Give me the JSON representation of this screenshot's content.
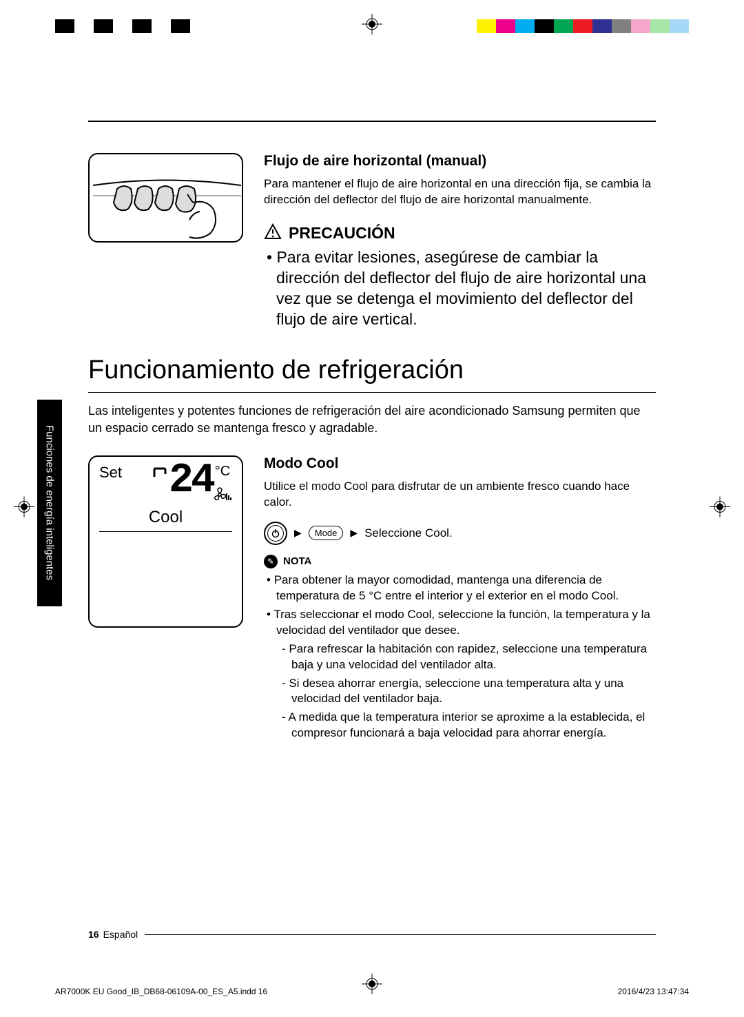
{
  "regbar": {
    "left_colors": [
      "#000000",
      "#ffffff",
      "#000000",
      "#ffffff",
      "#000000",
      "#ffffff",
      "#000000"
    ],
    "right_colors": [
      "#00aeef",
      "#ec008c",
      "#fff200",
      "#000000",
      "#00a651",
      "#ed1c24",
      "#2e3192",
      "#ffffff"
    ],
    "right_colors2": [
      "#fff200",
      "#ec008c",
      "#00aeef",
      "#7f7f7f",
      "#9e9e9e",
      "#bdbdbd",
      "#dcdcdc"
    ]
  },
  "section1": {
    "heading": "Flujo de aire horizontal (manual)",
    "body": "Para mantener el flujo de aire horizontal en una dirección fija, se cambia la dirección del deflector del flujo de aire horizontal manualmente.",
    "caution_label": "PRECAUCIÓN",
    "caution_body": "Para evitar lesiones, asegúrese de cambiar la dirección del deflector del flujo de aire horizontal una vez que se detenga el movimiento del deflector del flujo de aire vertical."
  },
  "main": {
    "title": "Funcionamiento de refrigeración",
    "intro": "Las inteligentes y potentes funciones de refrigeración del aire acondicionado Samsung permiten que un espacio cerrado se mantenga fresco y agradable."
  },
  "side_tab": "Funciones de energía inteligentes",
  "remote": {
    "set_label": "Set",
    "temp_value": "24",
    "temp_unit": "°C",
    "mode": "Cool"
  },
  "section2": {
    "heading": "Modo Cool",
    "body": "Utilice el modo Cool para disfrutar de un ambiente fresco cuando hace calor.",
    "step_mode": "Mode",
    "step_select": "Seleccione Cool.",
    "nota_label": "NOTA",
    "notes": [
      "Para obtener la mayor comodidad, mantenga una diferencia de temperatura de 5 °C entre el interior y el exterior en el modo Cool.",
      "Tras seleccionar el modo Cool, seleccione la función, la temperatura y la velocidad del ventilador que desee."
    ],
    "subnotes": [
      "Para refrescar la habitación con rapidez, seleccione una temperatura baja y una velocidad del ventilador alta.",
      "Si desea ahorrar energía, seleccione una temperatura alta y una velocidad del ventilador baja.",
      "A medida que la temperatura interior se aproxime a la establecida, el compresor funcionará a baja velocidad para ahorrar energía."
    ]
  },
  "footer": {
    "page_number": "16",
    "language": "Español",
    "slug_left": "AR7000K EU Good_IB_DB68-06109A-00_ES_A5.indd   16",
    "slug_right": "2016/4/23   13:47:34"
  }
}
